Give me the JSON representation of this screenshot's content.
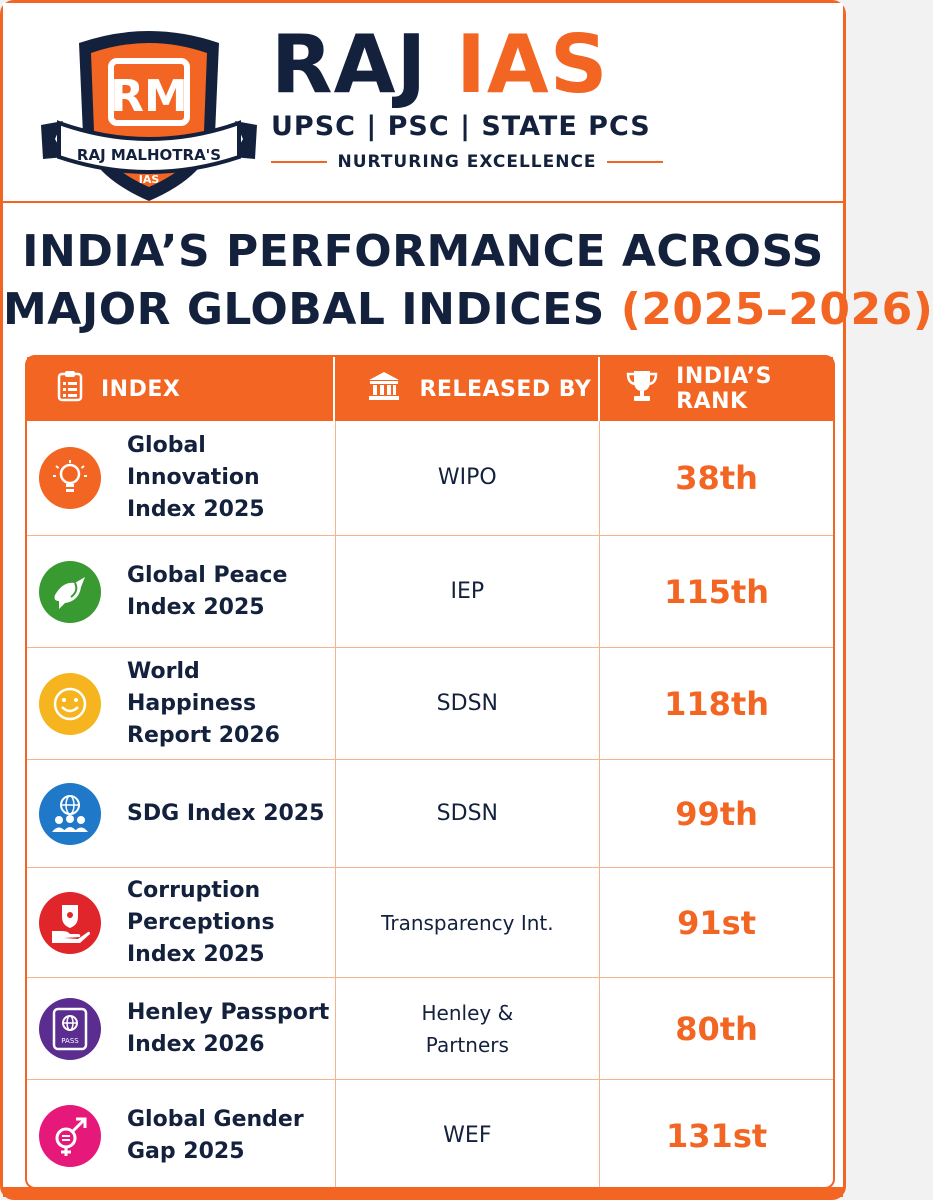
{
  "brand": {
    "name_part1": "RAJ",
    "name_part2": "IAS",
    "subtitle": "UPSC | PSC | STATE PCS",
    "tagline": "NURTURING EXCELLENCE",
    "logo_monogram": "RM",
    "logo_ribbon_text": "RAJ MALHOTRA'S",
    "logo_bottom_text": "IAS"
  },
  "title": {
    "line1": "INDIA’S PERFORMANCE ACROSS",
    "line2": "MAJOR GLOBAL INDICES",
    "years": "(2025–2026)"
  },
  "colors": {
    "accent": "#f26522",
    "navy": "#14213d"
  },
  "table": {
    "headers": {
      "index": "INDEX",
      "released_by": "RELEASED BY",
      "rank": "INDIA’S RANK"
    },
    "header_icons": [
      "clipboard-icon",
      "institution-icon",
      "trophy-icon"
    ],
    "rows": [
      {
        "icon": "lightbulb-icon",
        "icon_color": "#f26522",
        "index": "Global Innovation\nIndex 2025",
        "released_by": "WIPO",
        "rank": "38th"
      },
      {
        "icon": "dove-icon",
        "icon_color": "#3a9a32",
        "index": "Global Peace\nIndex 2025",
        "released_by": "IEP",
        "rank": "115th"
      },
      {
        "icon": "smiley-icon",
        "icon_color": "#f6b51e",
        "index": "World Happiness\nReport 2026",
        "released_by": "SDSN",
        "rank": "118th"
      },
      {
        "icon": "globe-people-icon",
        "icon_color": "#1f78c8",
        "index": "SDG Index 2025",
        "released_by": "SDSN",
        "rank": "99th"
      },
      {
        "icon": "hand-shield-icon",
        "icon_color": "#e0262b",
        "index": "Corruption\nPerceptions\nIndex 2025",
        "released_by": "Transparency Int.",
        "rank": "91st"
      },
      {
        "icon": "passport-icon",
        "icon_color": "#5c2d91",
        "index": "Henley Passport\nIndex 2026",
        "released_by": "Henley &\nPartners",
        "rank": "80th"
      },
      {
        "icon": "gender-icon",
        "icon_color": "#e6197a",
        "index": "Global Gender\nGap 2025",
        "released_by": "WEF",
        "rank": "131st"
      }
    ],
    "passport_icon_text": "PASS"
  }
}
